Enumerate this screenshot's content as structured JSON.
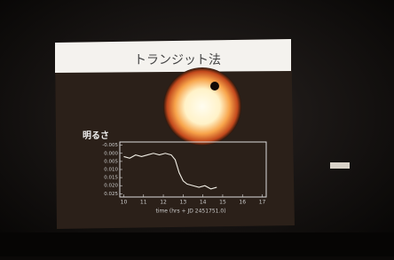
{
  "slide": {
    "title": "トランジット法",
    "brightness_label": "明るさ"
  },
  "chart_data": {
    "type": "line",
    "x_label": "time (hrs + JD 2451751.0)",
    "x": [
      10,
      10.3,
      10.6,
      10.9,
      11.2,
      11.5,
      11.8,
      12.1,
      12.4,
      12.6,
      12.8,
      13.0,
      13.2,
      13.5,
      13.8,
      14.1,
      14.4,
      14.7
    ],
    "series": [
      {
        "color": "#f2efe6",
        "values": [
          0.002,
          0.003,
          0.001,
          0.002,
          0.001,
          0.0,
          0.001,
          0.0,
          0.001,
          0.004,
          0.012,
          0.017,
          0.019,
          0.02,
          0.021,
          0.02,
          0.022,
          0.021
        ]
      }
    ],
    "xlim": [
      9.8,
      17.2
    ],
    "xticks": [
      10,
      11,
      12,
      13,
      14,
      15,
      16,
      17
    ],
    "ylim": [
      -0.007,
      0.027
    ],
    "inverted_y": true,
    "yticks": [
      {
        "value": -0.005,
        "label": "-0.005"
      },
      {
        "value": 0,
        "label": "0.000"
      },
      {
        "value": 0.005,
        "label": "0.005"
      },
      {
        "value": 0.01,
        "label": "0.010"
      },
      {
        "value": 0.015,
        "label": "0.015"
      },
      {
        "value": 0.02,
        "label": "0.020"
      },
      {
        "value": 0.025,
        "label": "0.025"
      }
    ]
  }
}
